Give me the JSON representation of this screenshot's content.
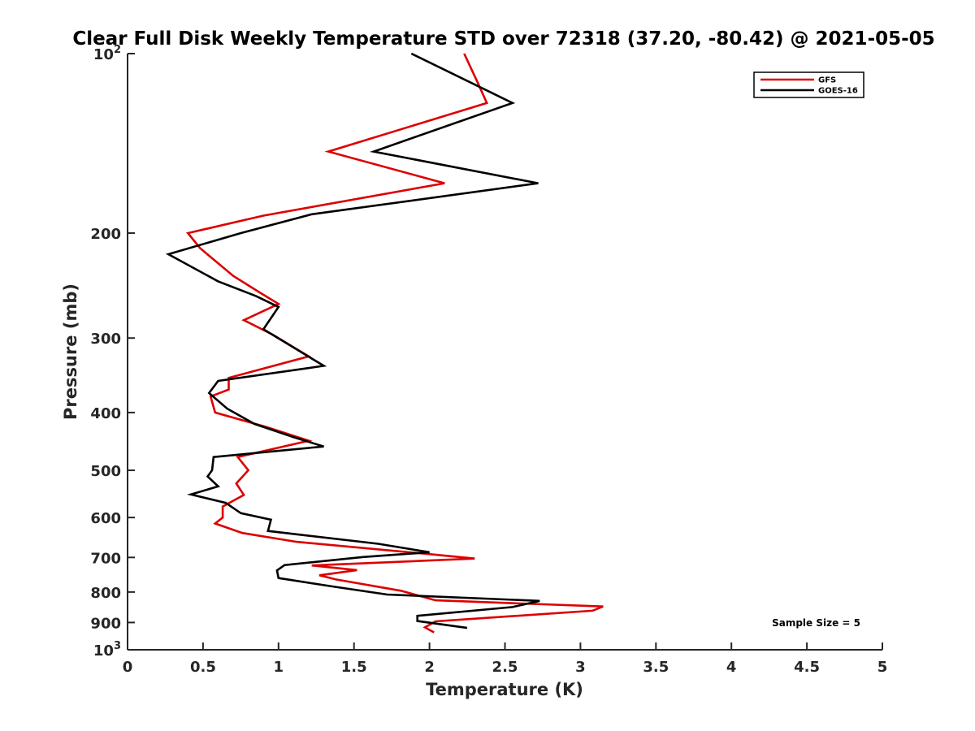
{
  "chart_data": {
    "type": "line",
    "title": "Clear Full Disk Weekly Temperature STD over 72318 (37.20, -80.42) @ 2021-05-05",
    "xlabel": "Temperature (K)",
    "ylabel": "Pressure (mb)",
    "xlim": [
      0,
      5
    ],
    "ylim": [
      100,
      1000
    ],
    "y_scale": "log",
    "y_reversed": true,
    "x_ticks": [
      "0",
      "0.5",
      "1",
      "1.5",
      "2",
      "2.5",
      "3",
      "3.5",
      "4",
      "4.5",
      "5"
    ],
    "y_ticks": [
      {
        "value": 100,
        "base": "10",
        "exp": "2"
      },
      {
        "value": 200,
        "label": "200"
      },
      {
        "value": 300,
        "label": "300"
      },
      {
        "value": 400,
        "label": "400"
      },
      {
        "value": 500,
        "label": "500"
      },
      {
        "value": 600,
        "label": "600"
      },
      {
        "value": 700,
        "label": "700"
      },
      {
        "value": 800,
        "label": "800"
      },
      {
        "value": 900,
        "label": "900"
      },
      {
        "value": 1000,
        "base": "10",
        "exp": "3"
      }
    ],
    "grid": false,
    "legend_position": "top-right",
    "annotation": "Sample Size = 5",
    "series": [
      {
        "name": "GFS",
        "color": "#dd0000",
        "points": [
          [
            2.23,
            100
          ],
          [
            2.32,
            112
          ],
          [
            2.38,
            121
          ],
          [
            1.33,
            146
          ],
          [
            2.1,
            165
          ],
          [
            0.9,
            187
          ],
          [
            0.4,
            200
          ],
          [
            0.48,
            212
          ],
          [
            0.7,
            236
          ],
          [
            0.88,
            252
          ],
          [
            1.0,
            263
          ],
          [
            0.77,
            280
          ],
          [
            0.96,
            296
          ],
          [
            1.2,
            322
          ],
          [
            0.67,
            350
          ],
          [
            0.67,
            366
          ],
          [
            0.55,
            376
          ],
          [
            0.58,
            400
          ],
          [
            0.92,
            423
          ],
          [
            1.2,
            446
          ],
          [
            0.73,
            475
          ],
          [
            0.8,
            500
          ],
          [
            0.72,
            526
          ],
          [
            0.77,
            550
          ],
          [
            0.63,
            575
          ],
          [
            0.63,
            600
          ],
          [
            0.58,
            614
          ],
          [
            0.76,
            637
          ],
          [
            1.12,
            659
          ],
          [
            1.97,
            690
          ],
          [
            2.3,
            703
          ],
          [
            1.22,
            722
          ],
          [
            1.52,
            735
          ],
          [
            1.27,
            750
          ],
          [
            1.38,
            762
          ],
          [
            1.81,
            796
          ],
          [
            2.04,
            826
          ],
          [
            3.15,
            846
          ],
          [
            3.08,
            860
          ],
          [
            2.04,
            896
          ],
          [
            1.97,
            917
          ],
          [
            2.03,
            935
          ]
        ]
      },
      {
        "name": "GOES-16",
        "color": "#000000",
        "points": [
          [
            1.88,
            100
          ],
          [
            2.55,
            121
          ],
          [
            1.63,
            146
          ],
          [
            2.72,
            165
          ],
          [
            1.22,
            186
          ],
          [
            0.75,
            200
          ],
          [
            0.27,
            217
          ],
          [
            0.6,
            241
          ],
          [
            0.85,
            255
          ],
          [
            1.0,
            266
          ],
          [
            0.9,
            290
          ],
          [
            1.3,
            334
          ],
          [
            0.6,
            354
          ],
          [
            0.54,
            371
          ],
          [
            0.66,
            394
          ],
          [
            0.84,
            418
          ],
          [
            1.1,
            440
          ],
          [
            1.3,
            456
          ],
          [
            0.57,
            475
          ],
          [
            0.56,
            500
          ],
          [
            0.53,
            512
          ],
          [
            0.6,
            532
          ],
          [
            0.42,
            549
          ],
          [
            0.65,
            567
          ],
          [
            0.75,
            590
          ],
          [
            0.95,
            605
          ],
          [
            0.93,
            632
          ],
          [
            1.66,
            664
          ],
          [
            2.0,
            686
          ],
          [
            1.56,
            699
          ],
          [
            1.04,
            721
          ],
          [
            0.99,
            736
          ],
          [
            1.0,
            758
          ],
          [
            1.37,
            784
          ],
          [
            1.72,
            808
          ],
          [
            2.73,
            828
          ],
          [
            2.55,
            848
          ],
          [
            1.92,
            877
          ],
          [
            1.92,
            895
          ],
          [
            2.25,
            919
          ]
        ]
      }
    ]
  }
}
